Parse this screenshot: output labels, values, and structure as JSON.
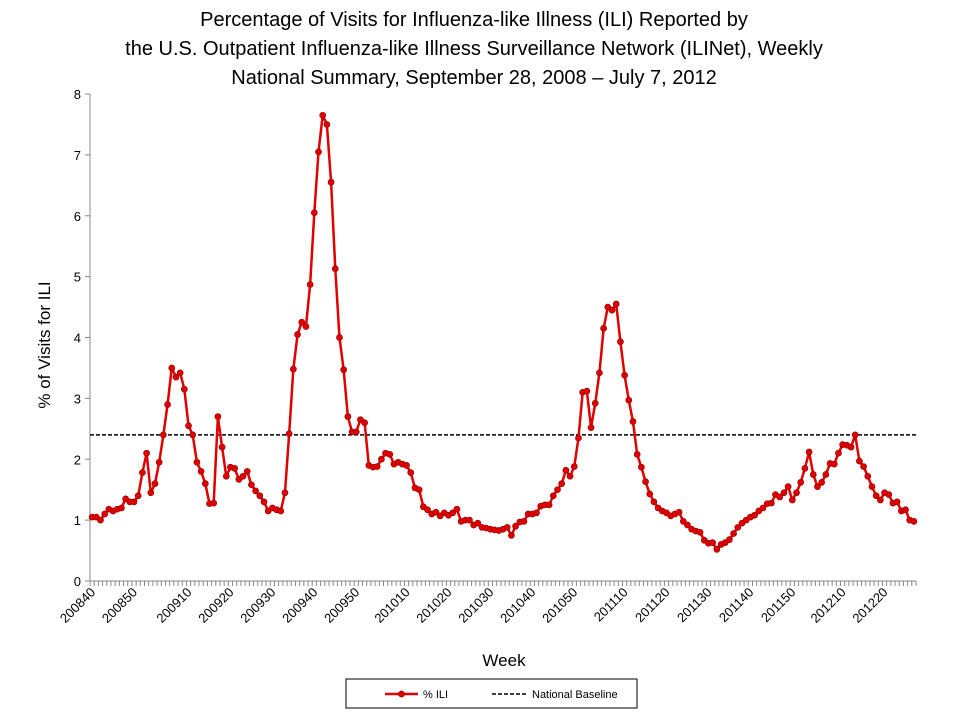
{
  "chart_data": {
    "type": "line",
    "title": [
      "Percentage of Visits for Influenza-like Illness (ILI) Reported by",
      "the U.S. Outpatient Influenza-like Illness Surveillance Network (ILINet), Weekly",
      "National Summary, September 28, 2008 – July 7, 2012"
    ],
    "x_label": "Week",
    "y_label": "% of Visits for ILI",
    "ylim": [
      0,
      8
    ],
    "yticks": [
      0,
      1,
      2,
      3,
      4,
      5,
      6,
      7,
      8
    ],
    "categories": [
      "200840",
      null,
      null,
      null,
      null,
      null,
      null,
      null,
      null,
      null,
      "200850",
      null,
      null,
      null,
      null,
      null,
      null,
      null,
      null,
      null,
      null,
      null,
      null,
      "200910",
      null,
      null,
      null,
      null,
      null,
      null,
      null,
      null,
      null,
      "200920",
      null,
      null,
      null,
      null,
      null,
      null,
      null,
      null,
      null,
      "200930",
      null,
      null,
      null,
      null,
      null,
      null,
      null,
      null,
      null,
      "200940",
      null,
      null,
      null,
      null,
      null,
      null,
      null,
      null,
      null,
      "200950",
      null,
      null,
      null,
      null,
      null,
      null,
      null,
      null,
      null,
      null,
      null,
      "201010",
      null,
      null,
      null,
      null,
      null,
      null,
      null,
      null,
      null,
      "201020",
      null,
      null,
      null,
      null,
      null,
      null,
      null,
      null,
      null,
      "201030",
      null,
      null,
      null,
      null,
      null,
      null,
      null,
      null,
      null,
      "201040",
      null,
      null,
      null,
      null,
      null,
      null,
      null,
      null,
      null,
      "201050",
      null,
      null,
      null,
      null,
      null,
      null,
      null,
      null,
      null,
      null,
      null,
      "201110",
      null,
      null,
      null,
      null,
      null,
      null,
      null,
      null,
      null,
      "201120",
      null,
      null,
      null,
      null,
      null,
      null,
      null,
      null,
      null,
      "201130",
      null,
      null,
      null,
      null,
      null,
      null,
      null,
      null,
      null,
      "201140",
      null,
      null,
      null,
      null,
      null,
      null,
      null,
      null,
      null,
      "201150",
      null,
      null,
      null,
      null,
      null,
      null,
      null,
      null,
      null,
      null,
      null,
      "201210",
      null,
      null,
      null,
      null,
      null,
      null,
      null,
      null,
      null,
      "201220",
      null,
      null,
      null,
      null,
      null,
      null,
      null
    ],
    "series": [
      {
        "name": "% ILI",
        "color": "#e00000",
        "values": [
          1.05,
          1.05,
          1.0,
          1.1,
          1.18,
          1.15,
          1.18,
          1.2,
          1.35,
          1.3,
          1.3,
          1.4,
          1.78,
          2.1,
          1.45,
          1.6,
          1.95,
          2.4,
          2.9,
          3.5,
          3.35,
          3.42,
          3.15,
          2.55,
          2.4,
          1.95,
          1.8,
          1.6,
          1.27,
          1.28,
          2.7,
          2.2,
          1.72,
          1.87,
          1.85,
          1.67,
          1.72,
          1.8,
          1.58,
          1.48,
          1.4,
          1.3,
          1.15,
          1.2,
          1.17,
          1.15,
          1.45,
          2.42,
          3.48,
          4.05,
          4.25,
          4.18,
          4.87,
          6.05,
          7.05,
          7.65,
          7.5,
          6.55,
          5.13,
          4.0,
          3.47,
          2.7,
          2.45,
          2.45,
          2.65,
          2.6,
          1.9,
          1.87,
          1.88,
          2.0,
          2.1,
          2.08,
          1.92,
          1.95,
          1.92,
          1.9,
          1.78,
          1.53,
          1.5,
          1.22,
          1.17,
          1.1,
          1.13,
          1.07,
          1.12,
          1.08,
          1.12,
          1.18,
          0.98,
          1.0,
          1.0,
          0.92,
          0.95,
          0.88,
          0.87,
          0.85,
          0.84,
          0.83,
          0.85,
          0.88,
          0.75,
          0.9,
          0.97,
          0.98,
          1.1,
          1.1,
          1.12,
          1.23,
          1.25,
          1.25,
          1.4,
          1.5,
          1.6,
          1.82,
          1.72,
          1.88,
          2.35,
          3.1,
          3.12,
          2.52,
          2.92,
          3.42,
          4.15,
          4.5,
          4.45,
          4.55,
          3.93,
          3.38,
          2.97,
          2.62,
          2.08,
          1.87,
          1.63,
          1.43,
          1.3,
          1.2,
          1.15,
          1.12,
          1.07,
          1.1,
          1.13,
          0.98,
          0.92,
          0.85,
          0.82,
          0.8,
          0.67,
          0.62,
          0.63,
          0.52,
          0.6,
          0.63,
          0.68,
          0.78,
          0.88,
          0.95,
          1.0,
          1.05,
          1.08,
          1.15,
          1.2,
          1.27,
          1.28,
          1.42,
          1.38,
          1.45,
          1.55,
          1.33,
          1.45,
          1.62,
          1.85,
          2.12,
          1.75,
          1.55,
          1.62,
          1.75,
          1.93,
          1.92,
          2.1,
          2.24,
          2.23,
          2.2,
          2.4,
          1.97,
          1.88,
          1.72,
          1.55,
          1.4,
          1.33,
          1.45,
          1.42,
          1.28,
          1.3,
          1.15,
          1.17,
          1.0,
          0.98
        ]
      }
    ],
    "baseline": {
      "name": "National Baseline",
      "value": 2.4,
      "color": "#000000"
    },
    "grid": false
  }
}
